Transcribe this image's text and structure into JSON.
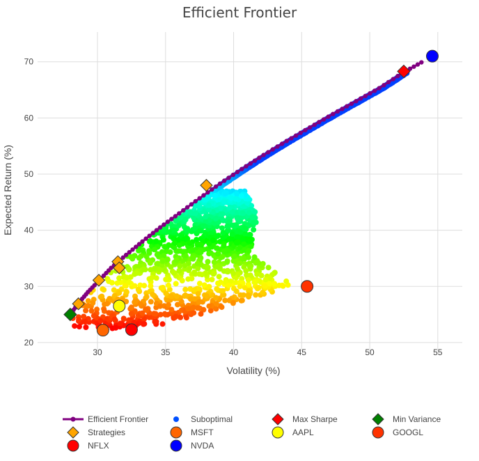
{
  "chart_data": {
    "type": "scatter",
    "title": "Efficient Frontier",
    "xlabel": "Volatility (%)",
    "ylabel": "Expected Return (%)",
    "xlim": [
      25.6,
      56.8
    ],
    "ylim": [
      18.5,
      75.3
    ],
    "xticks": [
      30,
      35,
      40,
      45,
      50,
      55
    ],
    "yticks": [
      20,
      30,
      40,
      50,
      60,
      70
    ],
    "grid": true,
    "legend_position": "bottom",
    "efficient_frontier": {
      "name": "Efficient Frontier",
      "color": "#800080",
      "x": [
        28.0,
        28.6,
        29.3,
        30.1,
        31.0,
        32.1,
        33.3,
        34.6,
        36.0,
        37.5,
        39.0,
        40.6,
        42.2,
        43.9,
        45.6,
        47.3,
        49.0,
        50.7,
        52.4,
        53.8
      ],
      "y": [
        25.0,
        27.0,
        29.0,
        31.0,
        33.3,
        35.6,
        38.0,
        40.5,
        43.0,
        45.7,
        48.3,
        50.9,
        53.4,
        55.9,
        58.3,
        60.7,
        63.0,
        65.3,
        68.0,
        69.9
      ]
    },
    "suboptimal": {
      "name": "Suboptimal",
      "color": "#0050ff",
      "return_range": [
        22.5,
        68.0
      ]
    },
    "strategies": {
      "name": "Strategies",
      "color": "#ffa500",
      "points": [
        {
          "x": 28.6,
          "y": 26.9
        },
        {
          "x": 30.1,
          "y": 31.1
        },
        {
          "x": 31.5,
          "y": 34.4
        },
        {
          "x": 31.6,
          "y": 33.3
        },
        {
          "x": 38.0,
          "y": 48.0
        }
      ]
    },
    "max_sharpe": {
      "name": "Max Sharpe",
      "color": "#ff0000",
      "x": 52.5,
      "y": 68.3
    },
    "min_variance": {
      "name": "Min Variance",
      "color": "#008000",
      "x": 28.0,
      "y": 25.0
    },
    "assets": [
      {
        "name": "NFLX",
        "color": "#ff0000",
        "x": 32.5,
        "y": 22.3
      },
      {
        "name": "MSFT",
        "color": "#ff6600",
        "x": 30.4,
        "y": 22.2
      },
      {
        "name": "NVDA",
        "color": "#0000ff",
        "x": 54.6,
        "y": 71.0
      },
      {
        "name": "AAPL",
        "color": "#ffff00",
        "x": 31.6,
        "y": 26.5
      },
      {
        "name": "GOOGL",
        "color": "#ff3300",
        "x": 45.4,
        "y": 30.0
      }
    ],
    "legend": [
      {
        "label": "Efficient Frontier",
        "symbol": "line-dot",
        "color": "#800080"
      },
      {
        "label": "Suboptimal",
        "symbol": "dot",
        "color": "#0050ff"
      },
      {
        "label": "Max Sharpe",
        "symbol": "diamond",
        "color": "#ff0000"
      },
      {
        "label": "Min Variance",
        "symbol": "diamond",
        "color": "#008000"
      },
      {
        "label": "Strategies",
        "symbol": "diamond",
        "color": "#ffa500"
      },
      {
        "label": "MSFT",
        "symbol": "circle",
        "color": "#ff6600"
      },
      {
        "label": "AAPL",
        "symbol": "circle",
        "color": "#ffff00"
      },
      {
        "label": "GOOGL",
        "symbol": "circle",
        "color": "#ff3300"
      },
      {
        "label": "NFLX",
        "symbol": "circle",
        "color": "#ff0000"
      },
      {
        "label": "NVDA",
        "symbol": "circle",
        "color": "#0000ff"
      }
    ]
  }
}
